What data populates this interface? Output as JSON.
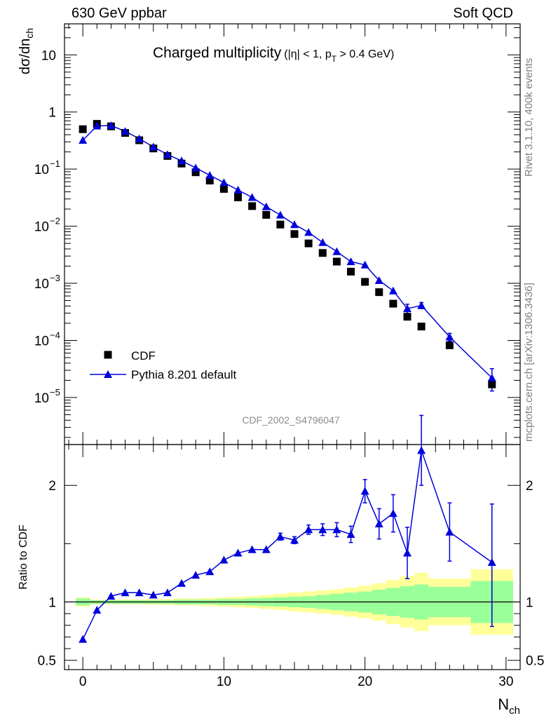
{
  "header": {
    "left": "630 GeV ppbar",
    "right": "Soft QCD"
  },
  "side_text": {
    "top": "Rivet 3.1.10,  400k events",
    "bottom": "mcplots.cern.ch [arXiv:1306.3436]"
  },
  "chart_data": [
    {
      "type": "scatter",
      "title_main": "Charged multiplicity",
      "title_sub": "(|η| < 1, p",
      "title_sub_sub": "T",
      "title_sub_end": " > 0.4 GeV)",
      "ylabel": "dσ/dn",
      "ylabel_sub": "ch",
      "yscale": "log",
      "ylim": [
        1.5e-06,
        35
      ],
      "xlim": [
        -1.3,
        31
      ],
      "y_ticks": [
        {
          "v": 10,
          "label": "10",
          "sup": ""
        },
        {
          "v": 1,
          "label": "1",
          "sup": ""
        },
        {
          "v": 0.1,
          "label": "10",
          "sup": "−1"
        },
        {
          "v": 0.01,
          "label": "10",
          "sup": "−2"
        },
        {
          "v": 0.001,
          "label": "10",
          "sup": "−3"
        },
        {
          "v": 0.0001,
          "label": "10",
          "sup": "−4"
        },
        {
          "v": 1e-05,
          "label": "10",
          "sup": "−5"
        }
      ],
      "watermark": "CDF_2002_S4796047",
      "legend": {
        "placement": "bottom-left",
        "entries": [
          "CDF",
          "Pythia 8.201 default"
        ]
      },
      "series": [
        {
          "name": "CDF",
          "marker": "square",
          "color": "#000000",
          "x": [
            0,
            1,
            2,
            3,
            4,
            5,
            6,
            7,
            8,
            9,
            10,
            11,
            12,
            13,
            14,
            15,
            16,
            17,
            18,
            19,
            20,
            21,
            22,
            23,
            24,
            26,
            29
          ],
          "y": [
            0.5,
            0.62,
            0.56,
            0.43,
            0.32,
            0.23,
            0.17,
            0.125,
            0.088,
            0.063,
            0.045,
            0.032,
            0.0225,
            0.0158,
            0.0107,
            0.0073,
            0.005,
            0.0034,
            0.0024,
            0.0016,
            0.00106,
            0.0007,
            0.00044,
            0.00026,
            0.000175,
            8.2e-05,
            1.7e-05
          ]
        },
        {
          "name": "Pythia 8.201 default",
          "marker": "triangle",
          "color": "#0000dd",
          "x": [
            0,
            1,
            2,
            3,
            4,
            5,
            6,
            7,
            8,
            9,
            10,
            11,
            12,
            13,
            14,
            15,
            16,
            17,
            18,
            19,
            20,
            21,
            22,
            23,
            24,
            26,
            29
          ],
          "y": [
            0.32,
            0.57,
            0.58,
            0.46,
            0.34,
            0.245,
            0.18,
            0.14,
            0.105,
            0.078,
            0.058,
            0.043,
            0.032,
            0.022,
            0.0157,
            0.0107,
            0.0078,
            0.0052,
            0.0036,
            0.0024,
            0.0021,
            0.00112,
            0.00074,
            0.00036,
            0.00041,
            0.000115,
            2.2e-05
          ],
          "err_lo": [
            0,
            0,
            0,
            0,
            0,
            0,
            0,
            0,
            0,
            0,
            0,
            0,
            0,
            0,
            0,
            0,
            0,
            0,
            0,
            0,
            0,
            0,
            0,
            7e-05,
            5e-05,
            1.8e-05,
            9e-06
          ],
          "err_hi": [
            0,
            0,
            0,
            0,
            0,
            0,
            0,
            0,
            0,
            0,
            0,
            0,
            0,
            0,
            0,
            0,
            0,
            0,
            0,
            0,
            0,
            0,
            0,
            7e-05,
            5e-05,
            1.8e-05,
            1e-05
          ]
        }
      ]
    },
    {
      "type": "line",
      "ylabel": "Ratio to CDF",
      "xlabel": "N",
      "xlabel_sub": "ch",
      "ylim": [
        0.42,
        2.35
      ],
      "xlim": [
        -1.3,
        31
      ],
      "x_ticks": [
        0,
        10,
        20,
        30
      ],
      "y_ticks": [
        {
          "v": 0.5,
          "label": "0.5"
        },
        {
          "v": 1,
          "label": "1"
        },
        {
          "v": 2,
          "label": "2"
        }
      ],
      "band_colors": {
        "outer": "#ffff99",
        "inner": "#99ff99"
      },
      "bands": [
        {
          "x0": -0.5,
          "x1": 0.5,
          "inner": [
            0.97,
            1.03
          ],
          "outer": [
            0.96,
            1.04
          ]
        },
        {
          "x0": 0.5,
          "x1": 1.5,
          "inner": [
            0.985,
            1.015
          ],
          "outer": [
            0.98,
            1.02
          ]
        },
        {
          "x0": 1.5,
          "x1": 2.5,
          "inner": [
            0.985,
            1.015
          ],
          "outer": [
            0.98,
            1.02
          ]
        },
        {
          "x0": 2.5,
          "x1": 3.5,
          "inner": [
            0.985,
            1.015
          ],
          "outer": [
            0.98,
            1.02
          ]
        },
        {
          "x0": 3.5,
          "x1": 4.5,
          "inner": [
            0.985,
            1.015
          ],
          "outer": [
            0.98,
            1.02
          ]
        },
        {
          "x0": 4.5,
          "x1": 5.5,
          "inner": [
            0.985,
            1.015
          ],
          "outer": [
            0.975,
            1.025
          ]
        },
        {
          "x0": 5.5,
          "x1": 6.5,
          "inner": [
            0.985,
            1.015
          ],
          "outer": [
            0.975,
            1.025
          ]
        },
        {
          "x0": 6.5,
          "x1": 7.5,
          "inner": [
            0.98,
            1.02
          ],
          "outer": [
            0.97,
            1.03
          ]
        },
        {
          "x0": 7.5,
          "x1": 8.5,
          "inner": [
            0.98,
            1.02
          ],
          "outer": [
            0.97,
            1.03
          ]
        },
        {
          "x0": 8.5,
          "x1": 9.5,
          "inner": [
            0.98,
            1.02
          ],
          "outer": [
            0.965,
            1.035
          ]
        },
        {
          "x0": 9.5,
          "x1": 10.5,
          "inner": [
            0.975,
            1.025
          ],
          "outer": [
            0.96,
            1.04
          ]
        },
        {
          "x0": 10.5,
          "x1": 11.5,
          "inner": [
            0.975,
            1.025
          ],
          "outer": [
            0.955,
            1.045
          ]
        },
        {
          "x0": 11.5,
          "x1": 12.5,
          "inner": [
            0.97,
            1.03
          ],
          "outer": [
            0.95,
            1.05
          ]
        },
        {
          "x0": 12.5,
          "x1": 13.5,
          "inner": [
            0.965,
            1.035
          ],
          "outer": [
            0.94,
            1.06
          ]
        },
        {
          "x0": 13.5,
          "x1": 14.5,
          "inner": [
            0.96,
            1.04
          ],
          "outer": [
            0.93,
            1.07
          ]
        },
        {
          "x0": 14.5,
          "x1": 15.5,
          "inner": [
            0.955,
            1.045
          ],
          "outer": [
            0.92,
            1.08
          ]
        },
        {
          "x0": 15.5,
          "x1": 16.5,
          "inner": [
            0.95,
            1.05
          ],
          "outer": [
            0.91,
            1.09
          ]
        },
        {
          "x0": 16.5,
          "x1": 17.5,
          "inner": [
            0.94,
            1.06
          ],
          "outer": [
            0.9,
            1.1
          ]
        },
        {
          "x0": 17.5,
          "x1": 18.5,
          "inner": [
            0.93,
            1.07
          ],
          "outer": [
            0.89,
            1.11
          ]
        },
        {
          "x0": 18.5,
          "x1": 19.5,
          "inner": [
            0.92,
            1.08
          ],
          "outer": [
            0.875,
            1.125
          ]
        },
        {
          "x0": 19.5,
          "x1": 20.5,
          "inner": [
            0.91,
            1.09
          ],
          "outer": [
            0.86,
            1.14
          ]
        },
        {
          "x0": 20.5,
          "x1": 21.5,
          "inner": [
            0.895,
            1.105
          ],
          "outer": [
            0.84,
            1.16
          ]
        },
        {
          "x0": 21.5,
          "x1": 22.5,
          "inner": [
            0.88,
            1.12
          ],
          "outer": [
            0.81,
            1.19
          ]
        },
        {
          "x0": 22.5,
          "x1": 23.5,
          "inner": [
            0.865,
            1.135
          ],
          "outer": [
            0.78,
            1.22
          ]
        },
        {
          "x0": 23.5,
          "x1": 24.5,
          "inner": [
            0.85,
            1.15
          ],
          "outer": [
            0.75,
            1.25
          ]
        },
        {
          "x0": 24.5,
          "x1": 27.5,
          "inner": [
            0.87,
            1.13
          ],
          "outer": [
            0.8,
            1.2
          ]
        },
        {
          "x0": 27.5,
          "x1": 30.5,
          "inner": [
            0.82,
            1.18
          ],
          "outer": [
            0.72,
            1.28
          ]
        }
      ],
      "series": [
        {
          "name": "Pythia 8.201 default",
          "marker": "triangle",
          "color": "#0000dd",
          "x": [
            0,
            1,
            2,
            3,
            4,
            5,
            6,
            7,
            8,
            9,
            10,
            11,
            12,
            13,
            14,
            15,
            16,
            17,
            18,
            19,
            20,
            21,
            22,
            23,
            24,
            26,
            29
          ],
          "y": [
            0.68,
            0.93,
            1.05,
            1.08,
            1.08,
            1.06,
            1.08,
            1.16,
            1.23,
            1.26,
            1.36,
            1.42,
            1.45,
            1.45,
            1.56,
            1.53,
            1.62,
            1.62,
            1.62,
            1.58,
            1.95,
            1.67,
            1.76,
            1.42,
            2.3,
            1.6,
            1.34
          ],
          "err_lo": [
            0,
            0,
            0,
            0,
            0,
            0,
            0,
            0,
            0,
            0,
            0,
            0,
            0,
            0,
            0.03,
            0.03,
            0.04,
            0.05,
            0.06,
            0.07,
            0.1,
            0.13,
            0.16,
            0.22,
            0.3,
            0.25,
            0.55
          ],
          "err_hi": [
            0,
            0,
            0,
            0,
            0,
            0,
            0,
            0,
            0,
            0,
            0,
            0,
            0,
            0,
            0.03,
            0.03,
            0.04,
            0.05,
            0.06,
            0.07,
            0.1,
            0.13,
            0.16,
            0.22,
            0.3,
            0.25,
            0.5
          ]
        }
      ]
    }
  ]
}
